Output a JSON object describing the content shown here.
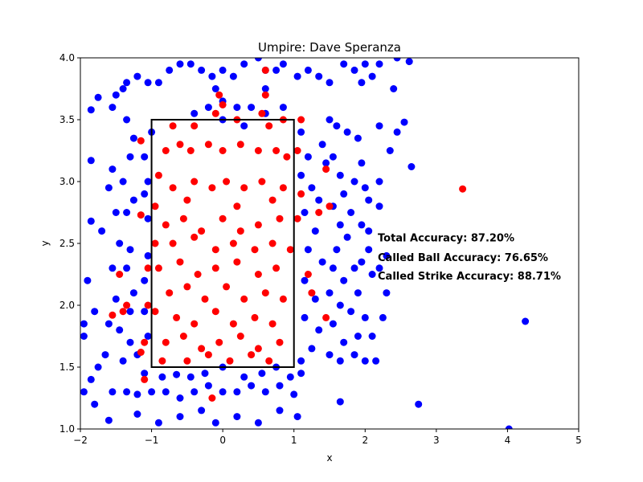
{
  "chart_data": {
    "type": "scatter",
    "title": "Umpire: Dave Speranza",
    "xlabel": "x",
    "ylabel": "y",
    "xlim": [
      -2,
      5
    ],
    "ylim": [
      1.0,
      4.0
    ],
    "xticks": [
      "−2",
      "−1",
      "0",
      "1",
      "2",
      "3",
      "4",
      "5"
    ],
    "yticks": [
      "1.0",
      "1.5",
      "2.0",
      "2.5",
      "3.0",
      "3.5",
      "4.0"
    ],
    "grid": false,
    "strike_zone": {
      "x": [
        -1,
        1
      ],
      "y": [
        1.5,
        3.5
      ],
      "color": "#000000"
    },
    "colors": {
      "ball": "#0000ff",
      "strike": "#ff0000"
    },
    "annotations": [
      {
        "text": "Total Accuracy: 87.20%",
        "x": 2.2,
        "y": 2.55
      },
      {
        "text": "Called Ball Accuracy: 76.65%",
        "x": 2.2,
        "y": 2.39
      },
      {
        "text": "Called Strike Accuracy: 88.71%",
        "x": 2.2,
        "y": 2.24
      }
    ],
    "series": [
      {
        "color": "#0000ff",
        "points": [
          [
            -1.75,
            3.68
          ],
          [
            -1.5,
            3.7
          ],
          [
            -1.4,
            3.75
          ],
          [
            -1.35,
            3.8
          ],
          [
            -1.2,
            3.85
          ],
          [
            -1.05,
            3.8
          ],
          [
            -0.9,
            3.8
          ],
          [
            -0.75,
            3.9
          ],
          [
            -0.6,
            3.95
          ],
          [
            -0.45,
            3.95
          ],
          [
            -0.3,
            3.9
          ],
          [
            -0.15,
            3.85
          ],
          [
            0.0,
            3.9
          ],
          [
            0.15,
            3.85
          ],
          [
            0.3,
            3.95
          ],
          [
            0.5,
            4.0
          ],
          [
            0.6,
            3.9
          ],
          [
            0.75,
            3.9
          ],
          [
            0.85,
            3.95
          ],
          [
            1.05,
            3.85
          ],
          [
            1.2,
            3.9
          ],
          [
            1.35,
            3.85
          ],
          [
            1.5,
            3.8
          ],
          [
            1.7,
            3.95
          ],
          [
            1.85,
            3.9
          ],
          [
            2.0,
            3.95
          ],
          [
            2.2,
            3.95
          ],
          [
            2.45,
            4.0
          ],
          [
            2.62,
            3.97
          ],
          [
            -1.85,
            3.58
          ],
          [
            -1.55,
            3.6
          ],
          [
            -1.35,
            3.5
          ],
          [
            -1.25,
            3.35
          ],
          [
            -1.3,
            3.2
          ],
          [
            -1.55,
            3.1
          ],
          [
            -1.85,
            3.17
          ],
          [
            -1.6,
            2.95
          ],
          [
            -1.4,
            3.0
          ],
          [
            -1.25,
            2.85
          ],
          [
            -1.35,
            2.75
          ],
          [
            -1.5,
            2.75
          ],
          [
            -1.7,
            2.6
          ],
          [
            -1.85,
            2.68
          ],
          [
            -1.45,
            2.5
          ],
          [
            -1.3,
            2.45
          ],
          [
            -1.55,
            2.3
          ],
          [
            -1.35,
            2.3
          ],
          [
            -1.25,
            2.1
          ],
          [
            -1.5,
            2.05
          ],
          [
            -1.3,
            1.95
          ],
          [
            -1.6,
            1.85
          ],
          [
            -1.45,
            1.8
          ],
          [
            -1.3,
            1.7
          ],
          [
            -1.65,
            1.6
          ],
          [
            -1.4,
            1.55
          ],
          [
            -1.2,
            1.6
          ],
          [
            -1.9,
            2.2
          ],
          [
            -1.8,
            1.95
          ],
          [
            -1.95,
            1.85
          ],
          [
            -1.75,
            1.5
          ],
          [
            -1.85,
            1.4
          ],
          [
            -1.95,
            1.3
          ],
          [
            -1.55,
            1.3
          ],
          [
            -1.35,
            1.3
          ],
          [
            -1.2,
            1.28
          ],
          [
            -1.0,
            1.3
          ],
          [
            -0.8,
            1.3
          ],
          [
            -0.6,
            1.25
          ],
          [
            -0.4,
            1.3
          ],
          [
            -0.2,
            1.35
          ],
          [
            0.0,
            1.3
          ],
          [
            0.2,
            1.3
          ],
          [
            0.4,
            1.35
          ],
          [
            0.6,
            1.3
          ],
          [
            0.8,
            1.35
          ],
          [
            1.0,
            1.28
          ],
          [
            -1.8,
            1.2
          ],
          [
            -1.6,
            1.07
          ],
          [
            -1.2,
            1.12
          ],
          [
            -0.9,
            1.05
          ],
          [
            -0.6,
            1.1
          ],
          [
            -0.3,
            1.15
          ],
          [
            -0.1,
            1.05
          ],
          [
            0.2,
            1.1
          ],
          [
            0.5,
            1.05
          ],
          [
            0.8,
            1.15
          ],
          [
            1.05,
            1.1
          ],
          [
            -1.95,
            1.75
          ],
          [
            -1.1,
            1.45
          ],
          [
            -0.85,
            1.42
          ],
          [
            -0.65,
            1.44
          ],
          [
            -0.45,
            1.42
          ],
          [
            -0.25,
            1.45
          ],
          [
            0.0,
            1.5
          ],
          [
            0.3,
            1.42
          ],
          [
            0.55,
            1.45
          ],
          [
            0.75,
            1.5
          ],
          [
            0.95,
            1.42
          ],
          [
            1.1,
            1.45
          ],
          [
            -1.05,
            2.7
          ],
          [
            -1.1,
            2.9
          ],
          [
            -1.05,
            3.0
          ],
          [
            -1.1,
            3.2
          ],
          [
            -1.0,
            3.4
          ],
          [
            -1.05,
            2.4
          ],
          [
            -1.1,
            2.2
          ],
          [
            -1.1,
            1.95
          ],
          [
            -1.05,
            1.75
          ],
          [
            -0.4,
            3.55
          ],
          [
            -0.2,
            3.6
          ],
          [
            0.0,
            3.65
          ],
          [
            0.2,
            3.6
          ],
          [
            0.4,
            3.6
          ],
          [
            0.6,
            3.55
          ],
          [
            0.85,
            3.6
          ],
          [
            0.0,
            3.5
          ],
          [
            0.3,
            3.45
          ],
          [
            -0.1,
            3.75
          ],
          [
            0.6,
            3.75
          ],
          [
            1.1,
            3.4
          ],
          [
            1.2,
            3.2
          ],
          [
            1.1,
            3.05
          ],
          [
            1.25,
            2.95
          ],
          [
            1.35,
            2.85
          ],
          [
            1.15,
            2.75
          ],
          [
            1.3,
            2.6
          ],
          [
            1.2,
            2.45
          ],
          [
            1.4,
            2.35
          ],
          [
            1.15,
            2.2
          ],
          [
            1.3,
            2.05
          ],
          [
            1.15,
            1.9
          ],
          [
            1.35,
            1.8
          ],
          [
            1.25,
            1.65
          ],
          [
            1.1,
            1.55
          ],
          [
            1.4,
            3.3
          ],
          [
            1.45,
            3.15
          ],
          [
            1.55,
            3.2
          ],
          [
            1.65,
            3.05
          ],
          [
            1.7,
            2.9
          ],
          [
            1.55,
            2.8
          ],
          [
            1.65,
            2.65
          ],
          [
            1.8,
            2.75
          ],
          [
            1.75,
            2.55
          ],
          [
            1.6,
            2.45
          ],
          [
            1.55,
            2.3
          ],
          [
            1.7,
            2.2
          ],
          [
            1.85,
            2.3
          ],
          [
            1.5,
            2.1
          ],
          [
            1.65,
            2.0
          ],
          [
            1.8,
            1.95
          ],
          [
            1.55,
            1.85
          ],
          [
            1.7,
            1.7
          ],
          [
            1.9,
            1.75
          ],
          [
            1.5,
            1.6
          ],
          [
            1.65,
            1.55
          ],
          [
            1.85,
            1.6
          ],
          [
            1.5,
            3.5
          ],
          [
            1.6,
            3.45
          ],
          [
            1.75,
            3.4
          ],
          [
            1.9,
            3.35
          ],
          [
            1.95,
            3.15
          ],
          [
            1.85,
            3.0
          ],
          [
            2.0,
            2.95
          ],
          [
            2.05,
            2.85
          ],
          [
            1.95,
            2.65
          ],
          [
            2.05,
            2.45
          ],
          [
            1.95,
            2.35
          ],
          [
            2.1,
            2.25
          ],
          [
            1.9,
            2.1
          ],
          [
            2.0,
            1.9
          ],
          [
            2.1,
            1.75
          ],
          [
            2.0,
            1.55
          ],
          [
            2.2,
            3.45
          ],
          [
            2.35,
            3.25
          ],
          [
            2.45,
            3.4
          ],
          [
            2.55,
            3.48
          ],
          [
            2.65,
            3.12
          ],
          [
            2.2,
            3.0
          ],
          [
            2.2,
            2.8
          ],
          [
            2.2,
            2.3
          ],
          [
            2.05,
            2.6
          ],
          [
            2.3,
            2.4
          ],
          [
            2.3,
            2.1
          ],
          [
            2.25,
            1.9
          ],
          [
            2.15,
            1.55
          ],
          [
            1.95,
            3.8
          ],
          [
            2.1,
            3.85
          ],
          [
            2.4,
            3.75
          ],
          [
            1.65,
            1.22
          ],
          [
            2.75,
            1.2
          ],
          [
            4.02,
            1.0
          ],
          [
            4.25,
            1.87
          ]
        ]
      },
      {
        "color": "#ff0000",
        "points": [
          [
            -1.15,
            3.33
          ],
          [
            -0.7,
            3.45
          ],
          [
            -0.4,
            3.45
          ],
          [
            -0.1,
            3.55
          ],
          [
            0.2,
            3.5
          ],
          [
            0.55,
            3.55
          ],
          [
            0.65,
            3.45
          ],
          [
            0.85,
            3.5
          ],
          [
            0.6,
            3.7
          ],
          [
            -0.05,
            3.7
          ],
          [
            -0.8,
            3.25
          ],
          [
            -0.6,
            3.3
          ],
          [
            -0.45,
            3.25
          ],
          [
            -0.2,
            3.3
          ],
          [
            0.0,
            3.25
          ],
          [
            0.25,
            3.3
          ],
          [
            0.5,
            3.25
          ],
          [
            0.75,
            3.25
          ],
          [
            0.9,
            3.2
          ],
          [
            -0.9,
            3.05
          ],
          [
            -0.7,
            2.95
          ],
          [
            -0.4,
            3.0
          ],
          [
            -0.15,
            2.95
          ],
          [
            0.05,
            3.0
          ],
          [
            0.3,
            2.95
          ],
          [
            0.55,
            3.0
          ],
          [
            0.85,
            2.95
          ],
          [
            -0.95,
            2.8
          ],
          [
            -0.5,
            2.85
          ],
          [
            0.2,
            2.8
          ],
          [
            0.7,
            2.85
          ],
          [
            -0.8,
            2.65
          ],
          [
            -0.55,
            2.7
          ],
          [
            -0.3,
            2.6
          ],
          [
            0.0,
            2.7
          ],
          [
            0.25,
            2.6
          ],
          [
            0.5,
            2.65
          ],
          [
            0.8,
            2.7
          ],
          [
            -0.95,
            2.5
          ],
          [
            -0.7,
            2.5
          ],
          [
            -0.4,
            2.55
          ],
          [
            -0.1,
            2.45
          ],
          [
            0.15,
            2.5
          ],
          [
            0.45,
            2.45
          ],
          [
            0.7,
            2.5
          ],
          [
            0.95,
            2.45
          ],
          [
            -0.9,
            2.3
          ],
          [
            -0.6,
            2.35
          ],
          [
            -0.35,
            2.25
          ],
          [
            -0.1,
            2.3
          ],
          [
            0.2,
            2.35
          ],
          [
            0.5,
            2.25
          ],
          [
            0.75,
            2.3
          ],
          [
            -0.75,
            2.1
          ],
          [
            -0.5,
            2.15
          ],
          [
            -0.25,
            2.05
          ],
          [
            0.05,
            2.15
          ],
          [
            0.3,
            2.05
          ],
          [
            0.6,
            2.1
          ],
          [
            0.85,
            2.05
          ],
          [
            -0.95,
            1.95
          ],
          [
            -0.65,
            1.9
          ],
          [
            -0.4,
            1.85
          ],
          [
            -0.1,
            1.95
          ],
          [
            0.15,
            1.85
          ],
          [
            0.45,
            1.9
          ],
          [
            0.7,
            1.85
          ],
          [
            -0.8,
            1.7
          ],
          [
            -0.55,
            1.75
          ],
          [
            -0.3,
            1.65
          ],
          [
            -0.05,
            1.7
          ],
          [
            0.25,
            1.75
          ],
          [
            0.5,
            1.65
          ],
          [
            0.8,
            1.7
          ],
          [
            -0.85,
            1.55
          ],
          [
            -0.5,
            1.55
          ],
          [
            -0.2,
            1.6
          ],
          [
            0.1,
            1.55
          ],
          [
            0.4,
            1.6
          ],
          [
            0.65,
            1.55
          ],
          [
            -1.05,
            2.3
          ],
          [
            -1.05,
            2.0
          ],
          [
            -1.1,
            1.7
          ],
          [
            -1.15,
            1.62
          ],
          [
            -1.35,
            2.0
          ],
          [
            -1.45,
            2.25
          ],
          [
            -1.4,
            1.95
          ],
          [
            -1.55,
            1.92
          ],
          [
            -1.15,
            2.73
          ],
          [
            1.1,
            3.5
          ],
          [
            1.05,
            3.25
          ],
          [
            1.1,
            2.9
          ],
          [
            1.05,
            2.7
          ],
          [
            1.2,
            2.25
          ],
          [
            1.35,
            2.75
          ],
          [
            1.45,
            3.1
          ],
          [
            1.5,
            2.8
          ],
          [
            1.45,
            1.9
          ],
          [
            1.25,
            2.1
          ],
          [
            3.37,
            2.94
          ],
          [
            -1.1,
            1.4
          ],
          [
            -0.15,
            1.25
          ],
          [
            0.0,
            3.62
          ],
          [
            0.6,
            3.9
          ]
        ]
      }
    ]
  }
}
